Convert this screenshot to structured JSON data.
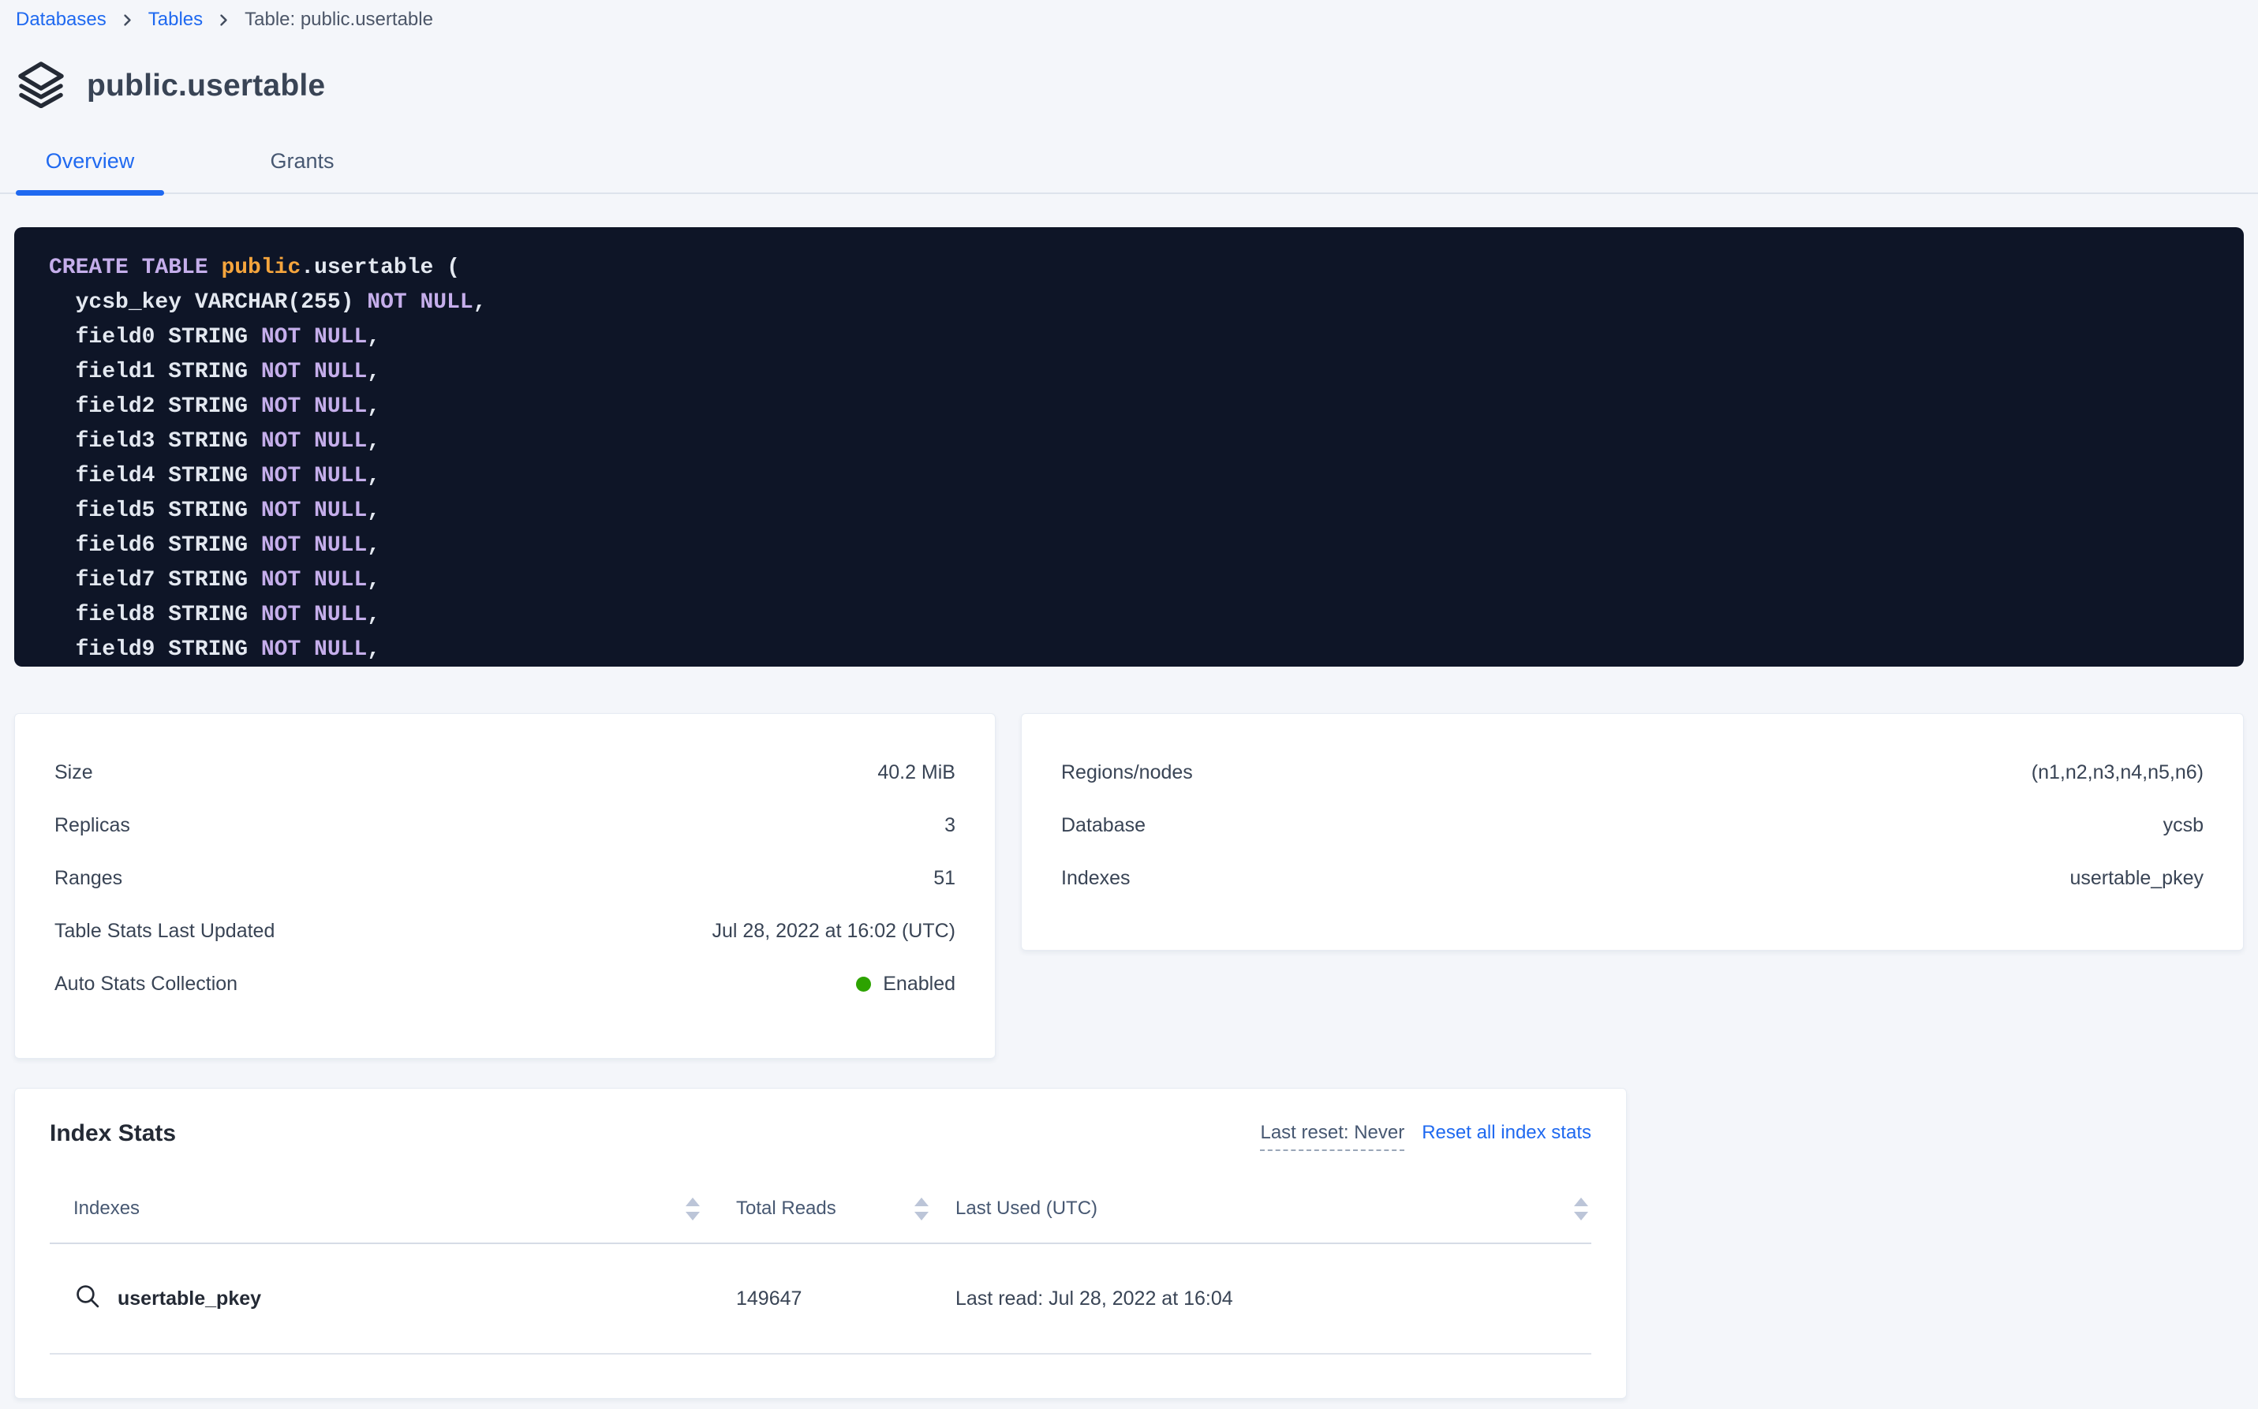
{
  "breadcrumb": {
    "items": [
      {
        "label": "Databases",
        "link": true
      },
      {
        "label": "Tables",
        "link": true
      },
      {
        "label": "Table: public.usertable",
        "link": false
      }
    ]
  },
  "header": {
    "title": "public.usertable"
  },
  "tabs": [
    {
      "label": "Overview",
      "active": true
    },
    {
      "label": "Grants",
      "active": false
    }
  ],
  "sql": {
    "lines": [
      {
        "tokens": [
          {
            "t": "CREATE TABLE ",
            "c": "k"
          },
          {
            "t": "public",
            "c": "d"
          },
          {
            "t": ".usertable (",
            "c": "p"
          }
        ]
      },
      {
        "tokens": [
          {
            "t": "  ycsb_key VARCHAR(255) ",
            "c": "p"
          },
          {
            "t": "NOT NULL",
            "c": "k"
          },
          {
            "t": ",",
            "c": "p"
          }
        ]
      },
      {
        "tokens": [
          {
            "t": "  field0 STRING ",
            "c": "p"
          },
          {
            "t": "NOT NULL",
            "c": "k"
          },
          {
            "t": ",",
            "c": "p"
          }
        ]
      },
      {
        "tokens": [
          {
            "t": "  field1 STRING ",
            "c": "p"
          },
          {
            "t": "NOT NULL",
            "c": "k"
          },
          {
            "t": ",",
            "c": "p"
          }
        ]
      },
      {
        "tokens": [
          {
            "t": "  field2 STRING ",
            "c": "p"
          },
          {
            "t": "NOT NULL",
            "c": "k"
          },
          {
            "t": ",",
            "c": "p"
          }
        ]
      },
      {
        "tokens": [
          {
            "t": "  field3 STRING ",
            "c": "p"
          },
          {
            "t": "NOT NULL",
            "c": "k"
          },
          {
            "t": ",",
            "c": "p"
          }
        ]
      },
      {
        "tokens": [
          {
            "t": "  field4 STRING ",
            "c": "p"
          },
          {
            "t": "NOT NULL",
            "c": "k"
          },
          {
            "t": ",",
            "c": "p"
          }
        ]
      },
      {
        "tokens": [
          {
            "t": "  field5 STRING ",
            "c": "p"
          },
          {
            "t": "NOT NULL",
            "c": "k"
          },
          {
            "t": ",",
            "c": "p"
          }
        ]
      },
      {
        "tokens": [
          {
            "t": "  field6 STRING ",
            "c": "p"
          },
          {
            "t": "NOT NULL",
            "c": "k"
          },
          {
            "t": ",",
            "c": "p"
          }
        ]
      },
      {
        "tokens": [
          {
            "t": "  field7 STRING ",
            "c": "p"
          },
          {
            "t": "NOT NULL",
            "c": "k"
          },
          {
            "t": ",",
            "c": "p"
          }
        ]
      },
      {
        "tokens": [
          {
            "t": "  field8 STRING ",
            "c": "p"
          },
          {
            "t": "NOT NULL",
            "c": "k"
          },
          {
            "t": ",",
            "c": "p"
          }
        ]
      },
      {
        "tokens": [
          {
            "t": "  field9 STRING ",
            "c": "p"
          },
          {
            "t": "NOT NULL",
            "c": "k"
          },
          {
            "t": ",",
            "c": "p"
          }
        ]
      }
    ]
  },
  "details_left": {
    "rows": [
      {
        "label": "Size",
        "value": "40.2 MiB"
      },
      {
        "label": "Replicas",
        "value": "3"
      },
      {
        "label": "Ranges",
        "value": "51"
      },
      {
        "label": "Table Stats Last Updated",
        "value": "Jul 28, 2022 at 16:02 (UTC)"
      },
      {
        "label": "Auto Stats Collection",
        "value": "Enabled",
        "status": "enabled"
      }
    ]
  },
  "details_right": {
    "rows": [
      {
        "label": "Regions/nodes",
        "value": "(n1,n2,n3,n4,n5,n6)"
      },
      {
        "label": "Database",
        "value": "ycsb"
      },
      {
        "label": "Indexes",
        "value": "usertable_pkey"
      }
    ]
  },
  "index_stats": {
    "title": "Index Stats",
    "last_reset": "Last reset: Never",
    "reset_link": "Reset all index stats",
    "columns": [
      "Indexes",
      "Total Reads",
      "Last Used (UTC)"
    ],
    "rows": [
      {
        "index": "usertable_pkey",
        "total_reads": "149647",
        "last_used": "Last read: Jul 28, 2022 at 16:04"
      }
    ]
  },
  "colors": {
    "accent_blue": "#1f69f0",
    "status_green": "#2da300",
    "code_background": "#0e1527",
    "code_keyword": "#c5aeeb",
    "code_database": "#f5a53d",
    "code_text": "#e3e8f0"
  }
}
